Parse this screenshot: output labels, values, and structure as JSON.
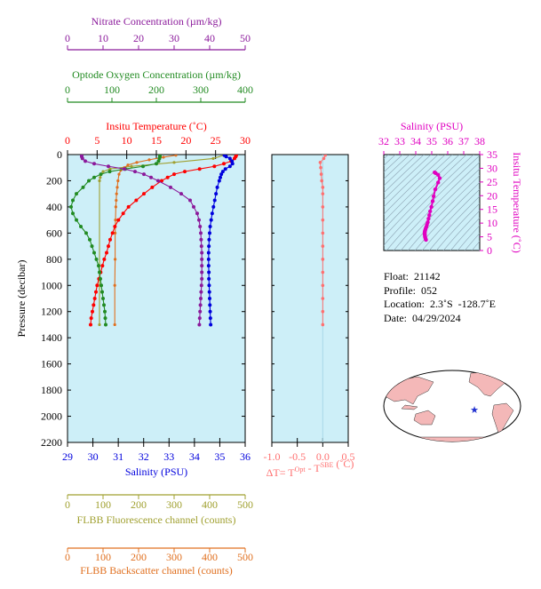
{
  "colors": {
    "plot_bg": "#cdeff8",
    "temperature": "#ff0000",
    "salinity": "#0000dd",
    "oxygen": "#228b22",
    "nitrate": "#8b1a9b",
    "fluorescence": "#a0a030",
    "backscatter": "#e07020",
    "delta_t": "#ff7070",
    "ts_axis": "#e000c0",
    "map_land": "#f4b8b8",
    "map_ocean": "#ffffff",
    "map_marker": "#2030d0"
  },
  "float_info": {
    "float_label": "Float:",
    "float_value": "21142",
    "profile_label": "Profile:",
    "profile_value": "052",
    "location_label": "Location:",
    "location_value": "2.3˚S  -128.7˚E",
    "date_label": "Date:",
    "date_value": "04/29/2024"
  },
  "map": {
    "marker_icon": "star-icon"
  },
  "chart_data": [
    {
      "type": "line",
      "panel": "main-profile",
      "ylabel": "Pressure (decibar)",
      "ylim": [
        2200,
        0
      ],
      "yticks": [
        0,
        200,
        400,
        600,
        800,
        1000,
        1200,
        1400,
        1600,
        1800,
        2000,
        2200
      ],
      "pressure": [
        5,
        15,
        30,
        50,
        70,
        90,
        110,
        130,
        150,
        175,
        200,
        250,
        300,
        350,
        400,
        450,
        500,
        550,
        600,
        650,
        700,
        750,
        800,
        850,
        900,
        950,
        1000,
        1050,
        1100,
        1150,
        1200,
        1250,
        1300
      ],
      "axes": [
        {
          "name": "salinity",
          "label": "Salinity (PSU)",
          "position": "bottom",
          "min": 29,
          "max": 36,
          "ticks": [
            29,
            30,
            31,
            32,
            33,
            34,
            35,
            36
          ]
        },
        {
          "name": "temperature",
          "label": "Insitu Temperature (˚C)",
          "position": "top-1",
          "min": 0,
          "max": 30,
          "ticks": [
            0,
            5,
            10,
            15,
            20,
            25,
            30
          ]
        },
        {
          "name": "oxygen",
          "label": "Optode Oxygen Concentration (µm/kg)",
          "position": "top-2",
          "min": 0,
          "max": 400,
          "ticks": [
            0,
            100,
            200,
            300,
            400
          ]
        },
        {
          "name": "nitrate",
          "label": "Nitrate Concentration (µm/kg)",
          "position": "top-3",
          "min": 0,
          "max": 50,
          "ticks": [
            0,
            10,
            20,
            30,
            40,
            50
          ]
        },
        {
          "name": "fluorescence",
          "label": "FLBB Fluorescence channel (counts)",
          "position": "bottom-2",
          "min": 0,
          "max": 500,
          "ticks": [
            0,
            100,
            200,
            300,
            400,
            500
          ]
        },
        {
          "name": "backscatter",
          "label": "FLBB Backscatter channel (counts)",
          "position": "bottom-3",
          "min": 0,
          "max": 500,
          "ticks": [
            0,
            100,
            200,
            300,
            400,
            500
          ]
        }
      ],
      "series": [
        {
          "axis": "temperature",
          "values": [
            28.5,
            28.4,
            28.2,
            27.6,
            26.4,
            24.8,
            22.3,
            19.8,
            18.0,
            16.9,
            15.9,
            14.3,
            12.9,
            11.6,
            10.3,
            9.4,
            8.6,
            8.0,
            7.6,
            7.2,
            6.9,
            6.6,
            6.2,
            5.9,
            5.6,
            5.3,
            5.0,
            4.8,
            4.6,
            4.4,
            4.2,
            4.0,
            3.9
          ]
        },
        {
          "axis": "salinity",
          "values": [
            35.18,
            35.25,
            35.4,
            35.48,
            35.5,
            35.4,
            35.22,
            35.12,
            35.06,
            35.02,
            34.98,
            34.9,
            34.85,
            34.8,
            34.75,
            34.7,
            34.66,
            34.62,
            34.6,
            34.58,
            34.57,
            34.56,
            34.56,
            34.56,
            34.57,
            34.57,
            34.58,
            34.59,
            34.6,
            34.61,
            34.62,
            34.63,
            34.64
          ]
        },
        {
          "axis": "oxygen",
          "values": [
            208,
            208,
            207,
            205,
            200,
            170,
            130,
            95,
            75,
            60,
            48,
            35,
            20,
            12,
            8,
            12,
            20,
            30,
            42,
            50,
            55,
            60,
            65,
            70,
            72,
            74,
            76,
            78,
            80,
            82,
            84,
            85,
            86
          ]
        },
        {
          "axis": "nitrate",
          "values": [
            4.0,
            4.0,
            4.2,
            5.0,
            7.5,
            11.5,
            16.0,
            19.0,
            21.5,
            23.5,
            25.5,
            29.0,
            32.0,
            34.5,
            35.5,
            36.5,
            37.0,
            37.3,
            37.5,
            37.6,
            37.7,
            37.8,
            37.8,
            37.8,
            37.8,
            37.8,
            37.7,
            37.6,
            37.5,
            37.4,
            37.3,
            37.2,
            37.1
          ]
        }
      ],
      "fluorescence": {
        "pressure": [
          5,
          30,
          60,
          90,
          110,
          130,
          150,
          175,
          200,
          1300
        ],
        "values": [
          440,
          410,
          300,
          180,
          120,
          100,
          95,
          92,
          90,
          90
        ]
      },
      "backscatter": {
        "pressure": [
          5,
          20,
          40,
          60,
          80,
          100,
          120,
          150,
          200,
          250,
          300,
          350,
          400,
          500,
          600,
          800,
          1000,
          1300
        ],
        "values": [
          305,
          270,
          230,
          195,
          170,
          160,
          150,
          145,
          142,
          140,
          138,
          137,
          136,
          135,
          134,
          134,
          133,
          133
        ]
      }
    },
    {
      "type": "line",
      "panel": "delta-t",
      "xlabel": "ΔT= T^Opt - T^SBE (˚C)",
      "xlim": [
        -1.0,
        0.5
      ],
      "xticks": [
        -1.0,
        -0.5,
        0.0,
        0.5
      ],
      "ylim": [
        2200,
        0
      ],
      "pressure": [
        5,
        30,
        60,
        100,
        150,
        200,
        250,
        300,
        400,
        500,
        600,
        700,
        800,
        900,
        1000,
        1100,
        1200,
        1300
      ],
      "values": [
        0.05,
        0.02,
        -0.05,
        -0.04,
        -0.03,
        -0.02,
        0.0,
        0.0,
        0.0,
        0.0,
        0.0,
        0.0,
        0.0,
        0.0,
        0.0,
        0.0,
        0.0,
        0.0
      ]
    },
    {
      "type": "scatter",
      "panel": "ts-diagram",
      "xlabel": "Salinity (PSU)",
      "ylabel": "Insitu Temperature (˚C)",
      "xlim": [
        32,
        38
      ],
      "ylim": [
        0,
        35
      ],
      "xticks": [
        32,
        33,
        34,
        35,
        36,
        37,
        38
      ],
      "yticks": [
        0,
        5,
        10,
        15,
        20,
        25,
        30,
        35
      ],
      "points": [
        {
          "s": 35.18,
          "t": 28.5
        },
        {
          "s": 35.25,
          "t": 28.2
        },
        {
          "s": 35.4,
          "t": 27.6
        },
        {
          "s": 35.5,
          "t": 26.4
        },
        {
          "s": 35.4,
          "t": 24.8
        },
        {
          "s": 35.22,
          "t": 22.3
        },
        {
          "s": 35.12,
          "t": 19.8
        },
        {
          "s": 35.06,
          "t": 18.0
        },
        {
          "s": 34.98,
          "t": 15.9
        },
        {
          "s": 34.9,
          "t": 14.3
        },
        {
          "s": 34.85,
          "t": 12.9
        },
        {
          "s": 34.8,
          "t": 11.6
        },
        {
          "s": 34.75,
          "t": 10.3
        },
        {
          "s": 34.7,
          "t": 9.4
        },
        {
          "s": 34.66,
          "t": 8.6
        },
        {
          "s": 34.62,
          "t": 8.0
        },
        {
          "s": 34.6,
          "t": 7.6
        },
        {
          "s": 34.58,
          "t": 7.2
        },
        {
          "s": 34.57,
          "t": 6.9
        },
        {
          "s": 34.56,
          "t": 6.6
        },
        {
          "s": 34.56,
          "t": 6.2
        },
        {
          "s": 34.56,
          "t": 5.9
        },
        {
          "s": 34.57,
          "t": 5.6
        },
        {
          "s": 34.58,
          "t": 5.0
        },
        {
          "s": 34.6,
          "t": 4.6
        },
        {
          "s": 34.62,
          "t": 4.2
        },
        {
          "s": 34.64,
          "t": 3.9
        }
      ]
    }
  ]
}
